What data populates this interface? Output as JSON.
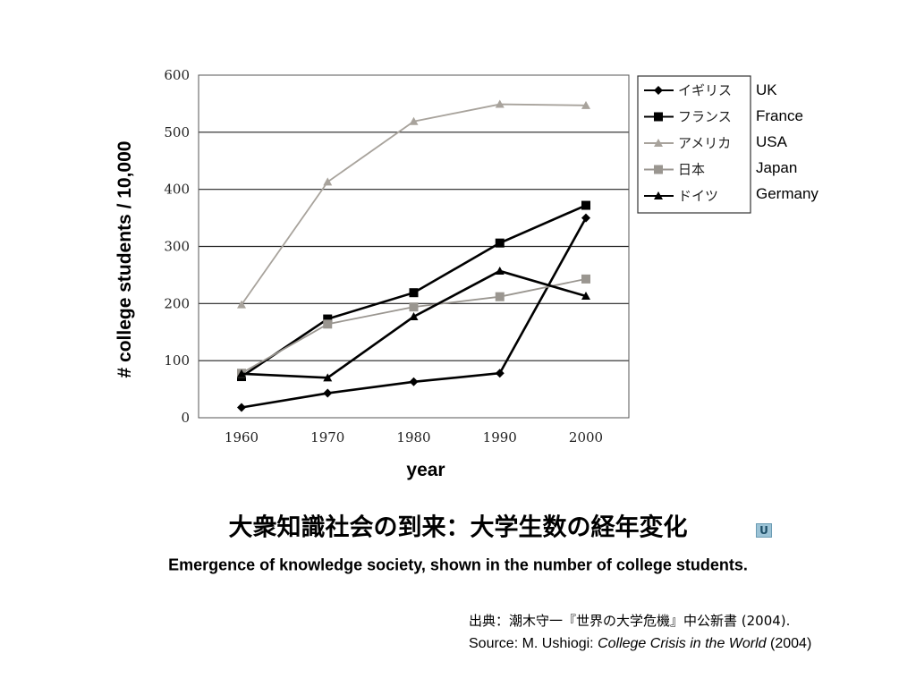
{
  "chart_data": {
    "type": "line",
    "title": "大衆知識社会の到来：大学生数の経年変化",
    "subtitle": "Emergence of knowledge society, shown in the number of college students.",
    "xlabel": "year",
    "ylabel": "# college students / 10,000",
    "x": [
      1960,
      1970,
      1980,
      1990,
      2000
    ],
    "ylim": [
      0,
      600
    ],
    "yticks": [
      "0",
      "100",
      "200",
      "300",
      "400",
      "500",
      "600"
    ],
    "xticks": [
      "1960",
      "1970",
      "1980",
      "1990",
      "2000"
    ],
    "grid": "horizontal",
    "legend_position": "top-right",
    "series": [
      {
        "name": "イギリス",
        "english": "UK",
        "marker": "diamond",
        "color": "#000000",
        "values": [
          18,
          43,
          63,
          78,
          350
        ]
      },
      {
        "name": "フランス",
        "english": "France",
        "marker": "square",
        "color": "#000000",
        "values": [
          72,
          173,
          219,
          306,
          372
        ]
      },
      {
        "name": "アメリカ",
        "english": "USA",
        "marker": "triangle",
        "color": "#a8a39c",
        "values": [
          198,
          413,
          519,
          549,
          547
        ]
      },
      {
        "name": "日本",
        "english": "Japan",
        "marker": "square",
        "color": "#9a9690",
        "values": [
          78,
          164,
          194,
          212,
          243
        ]
      },
      {
        "name": "ドイツ",
        "english": "Germany",
        "marker": "triangle",
        "color": "#000000",
        "values": [
          77,
          70,
          177,
          257,
          213
        ]
      }
    ]
  },
  "source": {
    "jp": "出典：潮木守一『世界の大学危機』中公新書 (2004).",
    "en_prefix": "Source: M. Ushiogi: ",
    "en_title": "College Crisis in the World",
    "en_suffix": " (2004)"
  },
  "icon": {
    "name": "return-icon",
    "glyph": "U"
  }
}
